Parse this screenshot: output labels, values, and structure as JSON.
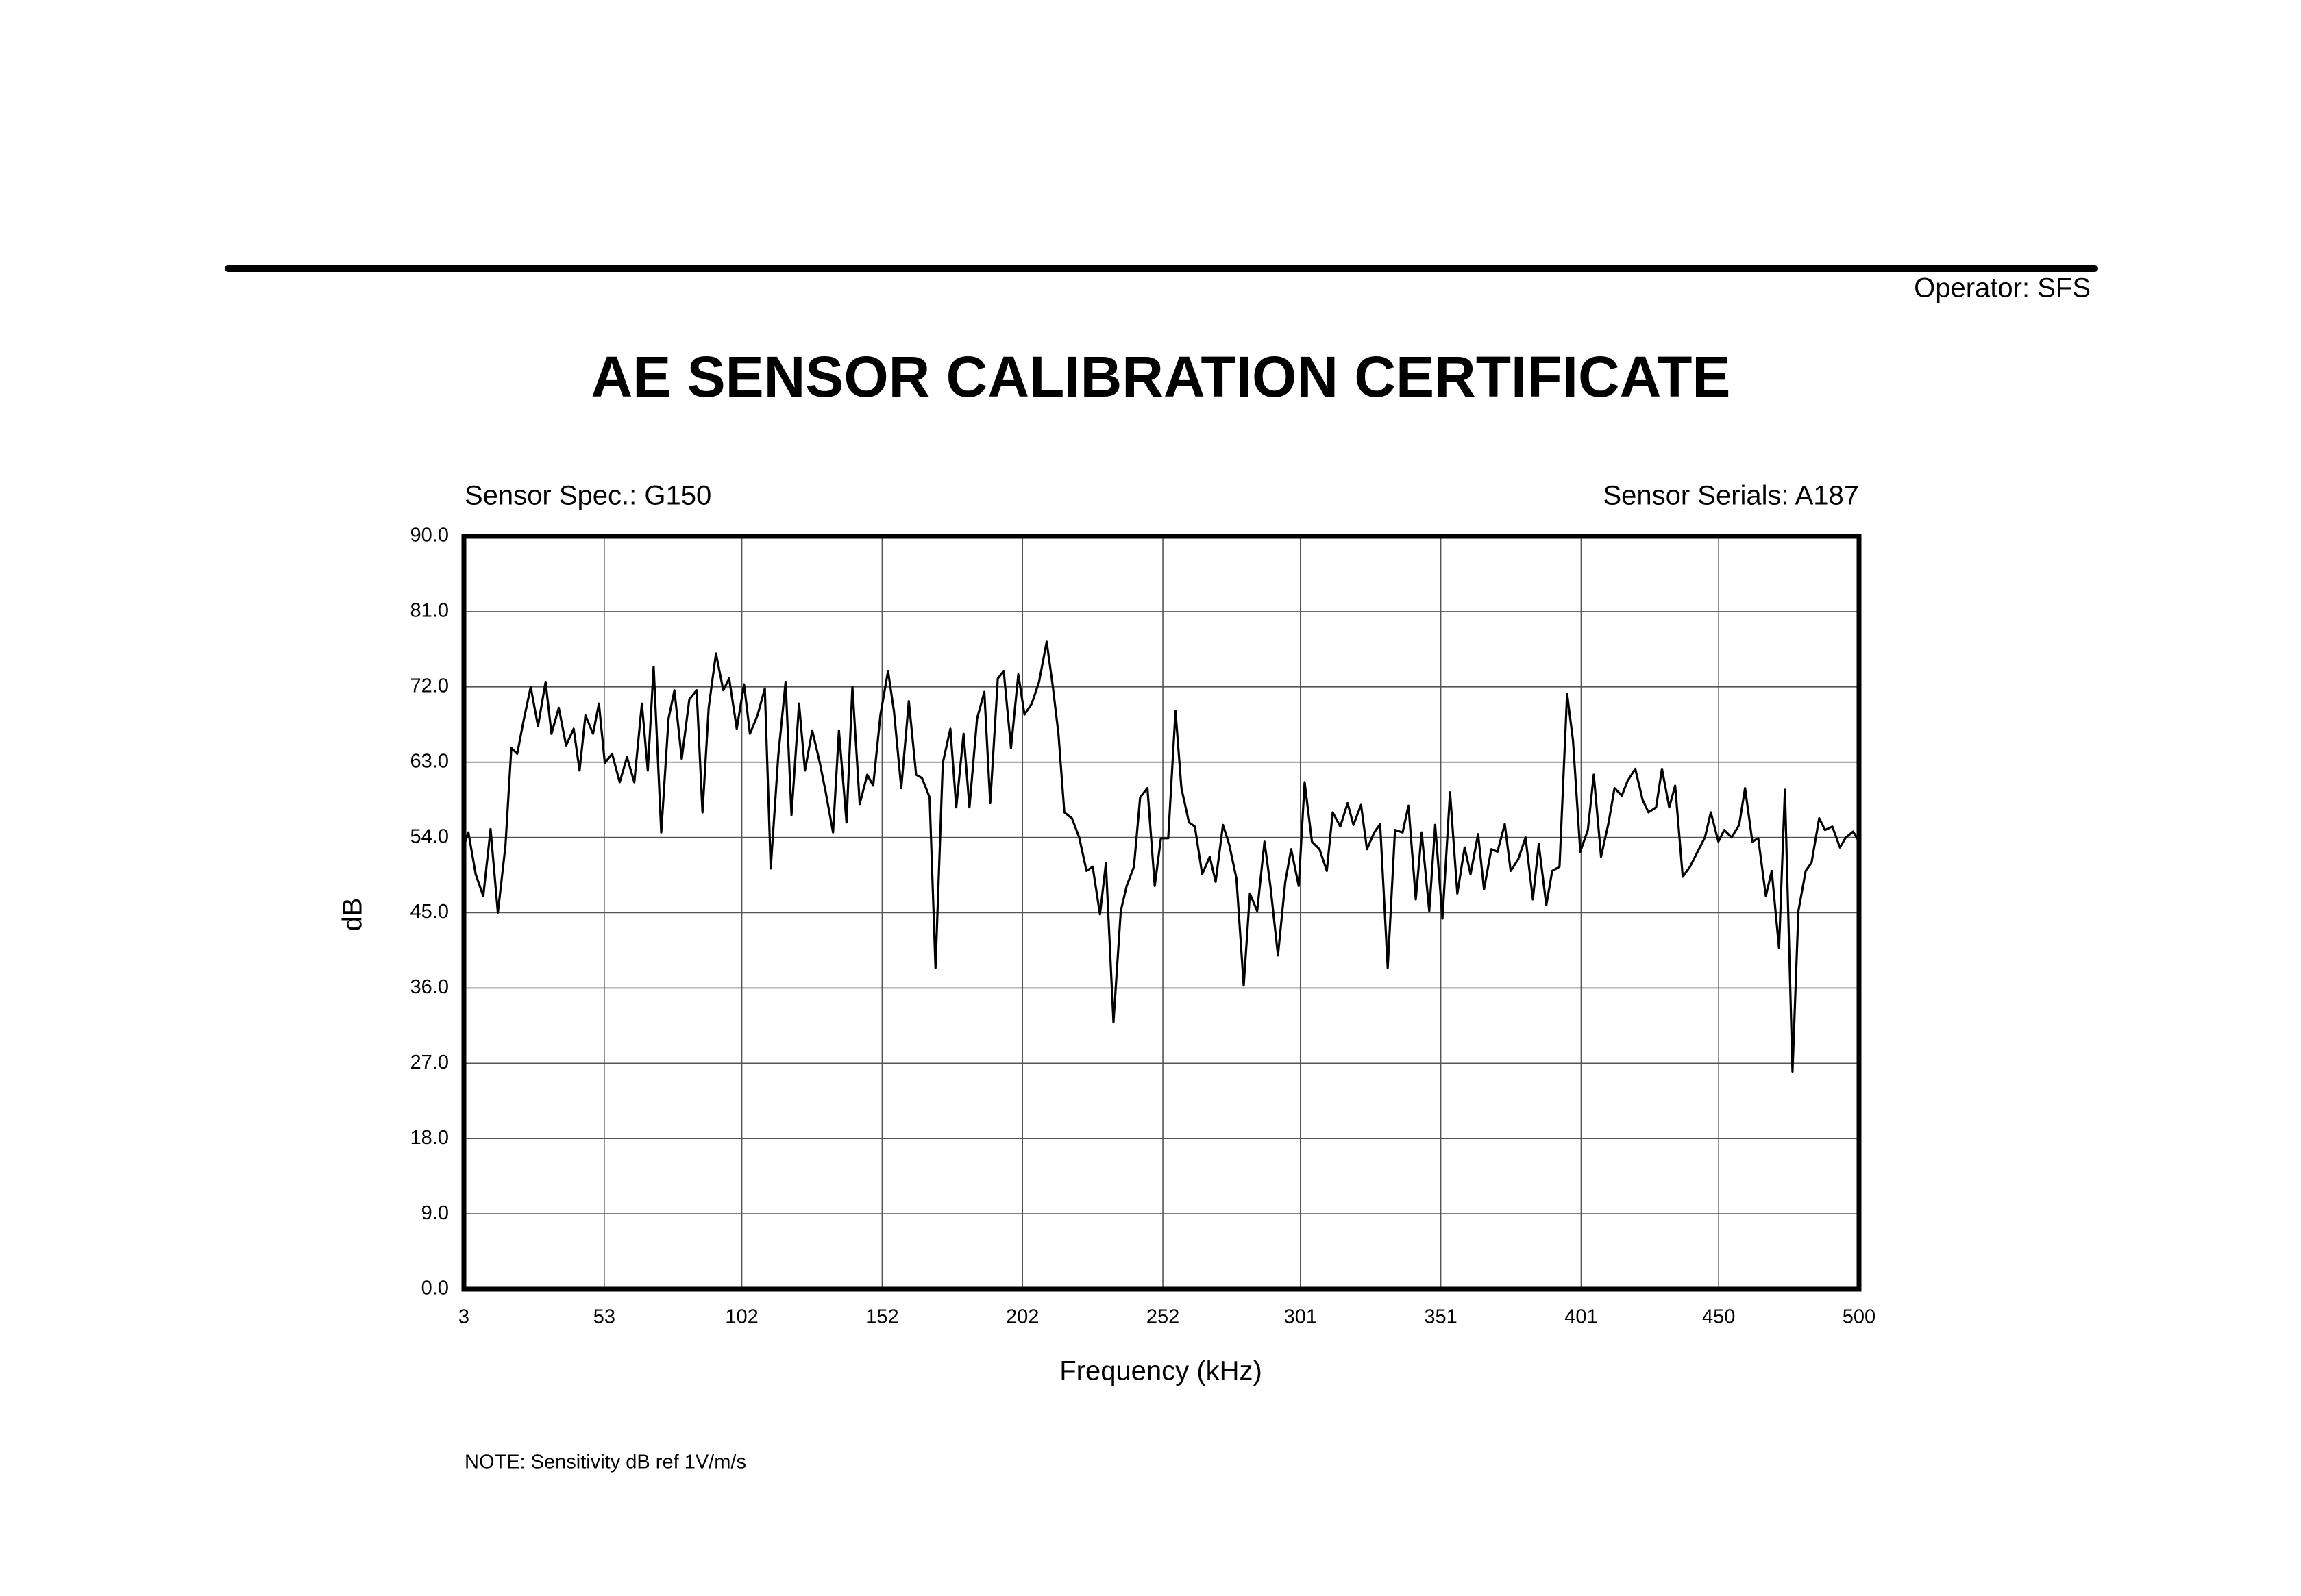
{
  "operator": "Operator: SFS",
  "note": "NOTE:  Sensitivity dB ref 1V/m/s",
  "chart_data": {
    "type": "line",
    "title": "AE SENSOR CALIBRATION CERTIFICATE",
    "subtitle_left": "Sensor Spec.: G150",
    "subtitle_right": "Sensor Serials: A187",
    "x_label": "Frequency (kHz)",
    "y_label": "dB",
    "color": "#000000",
    "grid": true,
    "xlim": [
      3,
      500
    ],
    "ylim": [
      0,
      90
    ],
    "xticks": [
      3,
      53,
      102,
      152,
      202,
      252,
      301,
      351,
      401,
      450,
      500
    ],
    "yticks": [
      {
        "value": 0,
        "label": "0.0"
      },
      {
        "value": 9,
        "label": "9.0"
      },
      {
        "value": 18,
        "label": "18.0"
      },
      {
        "value": 27,
        "label": "27.0"
      },
      {
        "value": 36,
        "label": "36.0"
      },
      {
        "value": 45,
        "label": "45.0"
      },
      {
        "value": 54,
        "label": "54.0"
      },
      {
        "value": 63,
        "label": "63.0"
      },
      {
        "value": 72,
        "label": "72.0"
      },
      {
        "value": 81,
        "label": "81.0"
      },
      {
        "value": 90,
        "label": "90.0"
      }
    ],
    "x": [
      3,
      4.6,
      7.2,
      9.9,
      12.5,
      15.1,
      17.8,
      19.9,
      22,
      24.1,
      26.8,
      29.4,
      32.1,
      34.2,
      36.8,
      39.4,
      42.1,
      44.2,
      46.3,
      49,
      51.1,
      53.2,
      55.8,
      58.5,
      61.1,
      63.7,
      66.4,
      68.5,
      70.6,
      73.3,
      75.9,
      78,
      80.6,
      83.3,
      85.9,
      88,
      90.2,
      92.8,
      95.4,
      97.5,
      100.2,
      102.8,
      104.9,
      107.6,
      110.2,
      112.3,
      115,
      117.6,
      119.7,
      122.4,
      124.5,
      127.1,
      129.8,
      131.9,
      134.5,
      136.6,
      139.3,
      141.4,
      144,
      146.7,
      148.8,
      151.4,
      154.1,
      156.2,
      158.8,
      161.5,
      164.1,
      166.2,
      168.9,
      171,
      173.6,
      176.3,
      178.4,
      181,
      183.1,
      185.8,
      188.4,
      190.5,
      193.2,
      195.3,
      197.9,
      200.5,
      202.7,
      205.3,
      207.9,
      210.6,
      212.7,
      214.8,
      216.9,
      219.6,
      222.2,
      224.8,
      227,
      229.6,
      231.7,
      234.4,
      237,
      239.1,
      241.7,
      243.9,
      246.5,
      249.1,
      251.3,
      253.9,
      256.5,
      258.6,
      261.3,
      263.4,
      266,
      268.7,
      270.8,
      273.4,
      275.6,
      278.2,
      280.8,
      283,
      285.6,
      288.2,
      290.3,
      293,
      295.6,
      297.7,
      300.4,
      302.5,
      305.1,
      307.8,
      310.4,
      312.5,
      315.2,
      317.8,
      319.9,
      322.6,
      324.7,
      327.3,
      329.4,
      332.1,
      334.7,
      337.4,
      339.5,
      342.1,
      344.2,
      346.9,
      349,
      351.6,
      354.3,
      356.9,
      359.5,
      361.6,
      364.3,
      366.4,
      369,
      371.2,
      373.8,
      375.9,
      378.6,
      381.2,
      383.8,
      385.9,
      388.6,
      390.7,
      393.3,
      396,
      398.1,
      400.7,
      403.4,
      405.5,
      408.1,
      410.8,
      412.9,
      415.5,
      417.6,
      420.3,
      422.9,
      425,
      427.7,
      429.8,
      432.4,
      434.5,
      437.2,
      439.8,
      442.5,
      445.1,
      447.2,
      449.9,
      452,
      454.6,
      457.3,
      459.4,
      462,
      464.1,
      466.8,
      468.9,
      471.5,
      473.6,
      476.3,
      478.4,
      481,
      483.1,
      485.8,
      487.9,
      490.5,
      493.2,
      495.3,
      497.9,
      500
    ],
    "values": [
      53,
      54.6,
      49.6,
      47,
      55,
      45,
      53,
      64.7,
      64,
      67.7,
      72,
      67.3,
      72.6,
      66.4,
      69.5,
      65,
      67,
      62,
      68.6,
      66.4,
      70,
      62.9,
      64,
      60.6,
      63.6,
      60.6,
      70,
      62,
      74.4,
      54.6,
      68.2,
      71.6,
      63.4,
      70.5,
      71.6,
      57,
      69.5,
      76,
      71.6,
      73,
      67,
      72.3,
      66.4,
      68.6,
      71.8,
      50.3,
      63.8,
      72.6,
      56.7,
      70,
      62,
      66.8,
      62.9,
      59.4,
      54.6,
      66.8,
      55.8,
      72,
      58,
      61.5,
      60.2,
      68.7,
      73.9,
      69.1,
      59.9,
      70.3,
      61.5,
      61.1,
      58.8,
      38.4,
      62.9,
      67,
      57.6,
      66.4,
      57.6,
      68.2,
      71.4,
      58.1,
      73,
      73.9,
      64.7,
      73.5,
      68.7,
      70,
      72.6,
      77.4,
      72.3,
      66.4,
      57,
      56.3,
      54,
      50,
      50.5,
      44.8,
      50.9,
      31.9,
      45.2,
      48.2,
      50.5,
      58.8,
      59.9,
      48.2,
      53.9,
      53.9,
      69.1,
      59.9,
      55.8,
      55.3,
      49.6,
      51.7,
      48.7,
      55.5,
      53.2,
      49.1,
      36.3,
      47.3,
      45.2,
      53.5,
      48.2,
      39.9,
      48.7,
      52.6,
      48.2,
      60.6,
      53.5,
      52.6,
      50,
      57,
      55.3,
      58.1,
      55.5,
      57.9,
      52.6,
      54.6,
      55.6,
      38.4,
      54.9,
      54.6,
      57.8,
      46.6,
      54.6,
      45.2,
      55.5,
      44.3,
      59.4,
      47.3,
      52.8,
      49.6,
      54.4,
      47.8,
      52.6,
      52.3,
      55.6,
      50,
      51.4,
      54,
      46.6,
      53.2,
      45.9,
      50,
      50.5,
      71.2,
      65.6,
      52.3,
      54.9,
      61.5,
      51.7,
      55.8,
      59.9,
      59,
      60.8,
      62.2,
      58.5,
      57,
      57.6,
      62.2,
      57.6,
      60.2,
      49.3,
      50.5,
      52.3,
      54,
      57,
      53.5,
      54.9,
      54,
      55.5,
      59.9,
      53.5,
      53.9,
      47,
      50,
      40.8,
      59.7,
      26,
      45.2,
      50,
      51,
      56.3,
      54.9,
      55.3,
      52.8,
      54,
      54.7,
      53.5
    ]
  }
}
